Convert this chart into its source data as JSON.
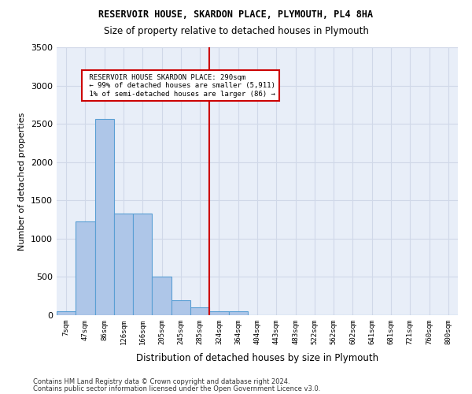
{
  "title": "RESERVOIR HOUSE, SKARDON PLACE, PLYMOUTH, PL4 8HA",
  "subtitle": "Size of property relative to detached houses in Plymouth",
  "xlabel": "Distribution of detached houses by size in Plymouth",
  "ylabel": "Number of detached properties",
  "bin_labels": [
    "7sqm",
    "47sqm",
    "86sqm",
    "126sqm",
    "166sqm",
    "205sqm",
    "245sqm",
    "285sqm",
    "324sqm",
    "364sqm",
    "404sqm",
    "443sqm",
    "483sqm",
    "522sqm",
    "562sqm",
    "602sqm",
    "641sqm",
    "681sqm",
    "721sqm",
    "760sqm",
    "800sqm"
  ],
  "bar_values": [
    50,
    1220,
    2560,
    1330,
    1330,
    500,
    200,
    100,
    50,
    50,
    0,
    0,
    0,
    0,
    0,
    0,
    0,
    0,
    0,
    0,
    0
  ],
  "bar_color": "#aec6e8",
  "bar_edge_color": "#5a9fd4",
  "grid_color": "#d0d8e8",
  "background_color": "#e8eef8",
  "vline_x": 7.5,
  "vline_color": "#cc0000",
  "annotation_text": " RESERVOIR HOUSE SKARDON PLACE: 290sqm\n ← 99% of detached houses are smaller (5,911)\n 1% of semi-detached houses are larger (86) →",
  "annotation_box_color": "#ffffff",
  "annotation_box_edge": "#cc0000",
  "ylim": [
    0,
    3500
  ],
  "yticks": [
    0,
    500,
    1000,
    1500,
    2000,
    2500,
    3000,
    3500
  ],
  "footer_line1": "Contains HM Land Registry data © Crown copyright and database right 2024.",
  "footer_line2": "Contains public sector information licensed under the Open Government Licence v3.0."
}
